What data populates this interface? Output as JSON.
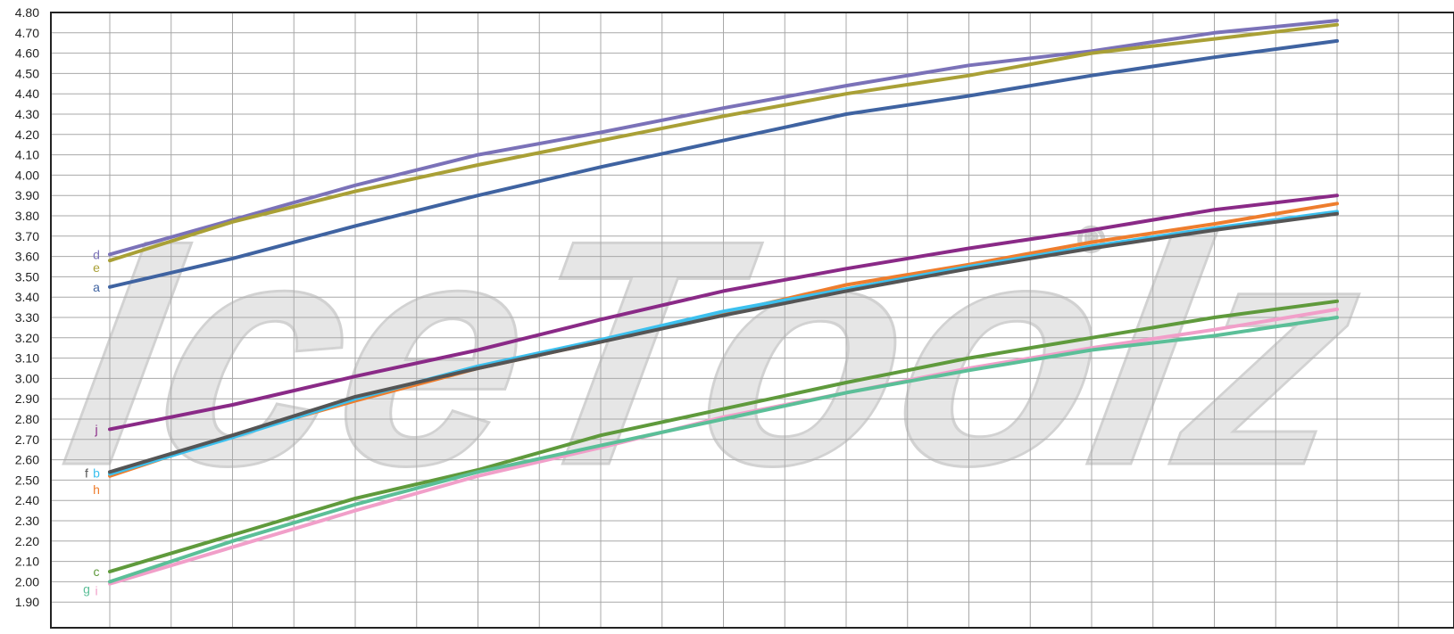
{
  "watermark": {
    "text": "IceToolz",
    "mark": "®",
    "fill": "#e6e6e6",
    "stroke": "#d2d2d2"
  },
  "chart_data": {
    "type": "line",
    "title": "",
    "xlabel": "",
    "ylabel": "",
    "x": [
      0,
      1,
      2,
      3,
      4,
      5,
      6,
      7,
      8,
      9,
      10
    ],
    "ylim": [
      1.9,
      4.8
    ],
    "yticks": [
      "1.90",
      "2.00",
      "2.10",
      "2.20",
      "2.30",
      "2.40",
      "2.50",
      "2.60",
      "2.70",
      "2.80",
      "2.90",
      "3.00",
      "3.10",
      "3.20",
      "3.30",
      "3.40",
      "3.50",
      "3.60",
      "3.70",
      "3.80",
      "3.90",
      "4.00",
      "4.10",
      "4.20",
      "4.30",
      "4.40",
      "4.50",
      "4.60",
      "4.70",
      "4.80"
    ],
    "grid": true,
    "series": [
      {
        "name": "d",
        "color": "#7b72b8",
        "values": [
          3.61,
          3.78,
          3.95,
          4.1,
          4.21,
          4.33,
          4.44,
          4.54,
          4.61,
          4.7,
          4.76
        ]
      },
      {
        "name": "e",
        "color": "#a9a036",
        "values": [
          3.58,
          3.77,
          3.92,
          4.05,
          4.17,
          4.29,
          4.4,
          4.49,
          4.6,
          4.67,
          4.74
        ]
      },
      {
        "name": "a",
        "color": "#3f63a1",
        "values": [
          3.45,
          3.59,
          3.75,
          3.9,
          4.04,
          4.17,
          4.3,
          4.39,
          4.49,
          4.58,
          4.66
        ]
      },
      {
        "name": "j",
        "color": "#8a2a87",
        "values": [
          2.75,
          2.87,
          3.01,
          3.14,
          3.29,
          3.43,
          3.54,
          3.64,
          3.73,
          3.83,
          3.9
        ]
      },
      {
        "name": "h",
        "color": "#ee7d2d",
        "values": [
          2.52,
          2.72,
          2.89,
          3.05,
          3.18,
          3.32,
          3.46,
          3.56,
          3.67,
          3.76,
          3.86
        ]
      },
      {
        "name": "b",
        "color": "#3cc0ee",
        "values": [
          2.53,
          2.71,
          2.9,
          3.06,
          3.19,
          3.33,
          3.44,
          3.55,
          3.65,
          3.74,
          3.82
        ]
      },
      {
        "name": "f",
        "color": "#555555",
        "values": [
          2.54,
          2.72,
          2.91,
          3.05,
          3.18,
          3.31,
          3.43,
          3.54,
          3.64,
          3.73,
          3.81
        ]
      },
      {
        "name": "c",
        "color": "#5f9a3c",
        "values": [
          2.05,
          2.23,
          2.41,
          2.55,
          2.72,
          2.85,
          2.98,
          3.1,
          3.2,
          3.3,
          3.38
        ]
      },
      {
        "name": "i",
        "color": "#f19fc9",
        "values": [
          1.99,
          2.17,
          2.35,
          2.52,
          2.66,
          2.81,
          2.93,
          3.05,
          3.15,
          3.24,
          3.34
        ]
      },
      {
        "name": "g",
        "color": "#5bbf98",
        "values": [
          2.0,
          2.2,
          2.38,
          2.54,
          2.67,
          2.8,
          2.93,
          3.04,
          3.14,
          3.21,
          3.3
        ]
      }
    ]
  }
}
